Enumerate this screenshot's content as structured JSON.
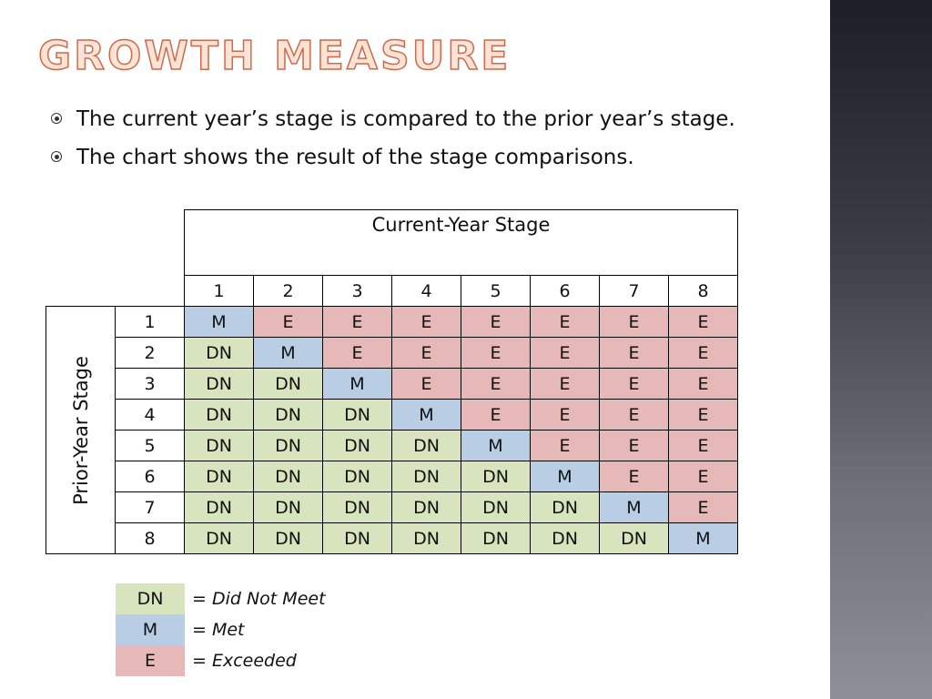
{
  "slide": {
    "title": "GROWTH MEASURE",
    "bullets": [
      "The current year’s stage is compared to the prior year’s stage.",
      "The chart shows the result of the stage comparisons."
    ]
  },
  "table": {
    "column_group_label": "Current-Year Stage",
    "row_group_label": "Prior-Year Stage",
    "column_headers": [
      "1",
      "2",
      "3",
      "4",
      "5",
      "6",
      "7",
      "8"
    ],
    "rows": [
      {
        "label": "1",
        "cells": [
          "M",
          "E",
          "E",
          "E",
          "E",
          "E",
          "E",
          "E"
        ]
      },
      {
        "label": "2",
        "cells": [
          "DN",
          "M",
          "E",
          "E",
          "E",
          "E",
          "E",
          "E"
        ]
      },
      {
        "label": "3",
        "cells": [
          "DN",
          "DN",
          "M",
          "E",
          "E",
          "E",
          "E",
          "E"
        ]
      },
      {
        "label": "4",
        "cells": [
          "DN",
          "DN",
          "DN",
          "M",
          "E",
          "E",
          "E",
          "E"
        ]
      },
      {
        "label": "5",
        "cells": [
          "DN",
          "DN",
          "DN",
          "DN",
          "M",
          "E",
          "E",
          "E"
        ]
      },
      {
        "label": "6",
        "cells": [
          "DN",
          "DN",
          "DN",
          "DN",
          "DN",
          "M",
          "E",
          "E"
        ]
      },
      {
        "label": "7",
        "cells": [
          "DN",
          "DN",
          "DN",
          "DN",
          "DN",
          "DN",
          "M",
          "E"
        ]
      },
      {
        "label": "8",
        "cells": [
          "DN",
          "DN",
          "DN",
          "DN",
          "DN",
          "DN",
          "DN",
          "M"
        ]
      }
    ]
  },
  "legend": [
    {
      "code": "DN",
      "text": "= Did Not Meet"
    },
    {
      "code": "M",
      "text": "= Met"
    },
    {
      "code": "E",
      "text": "= Exceeded"
    }
  ],
  "colors": {
    "did_not_meet": "#d7e4bd",
    "met": "#b9cde5",
    "exceeded": "#e6b9b8",
    "title_outline": "#d0694a",
    "title_fill": "#fbe3d6"
  }
}
